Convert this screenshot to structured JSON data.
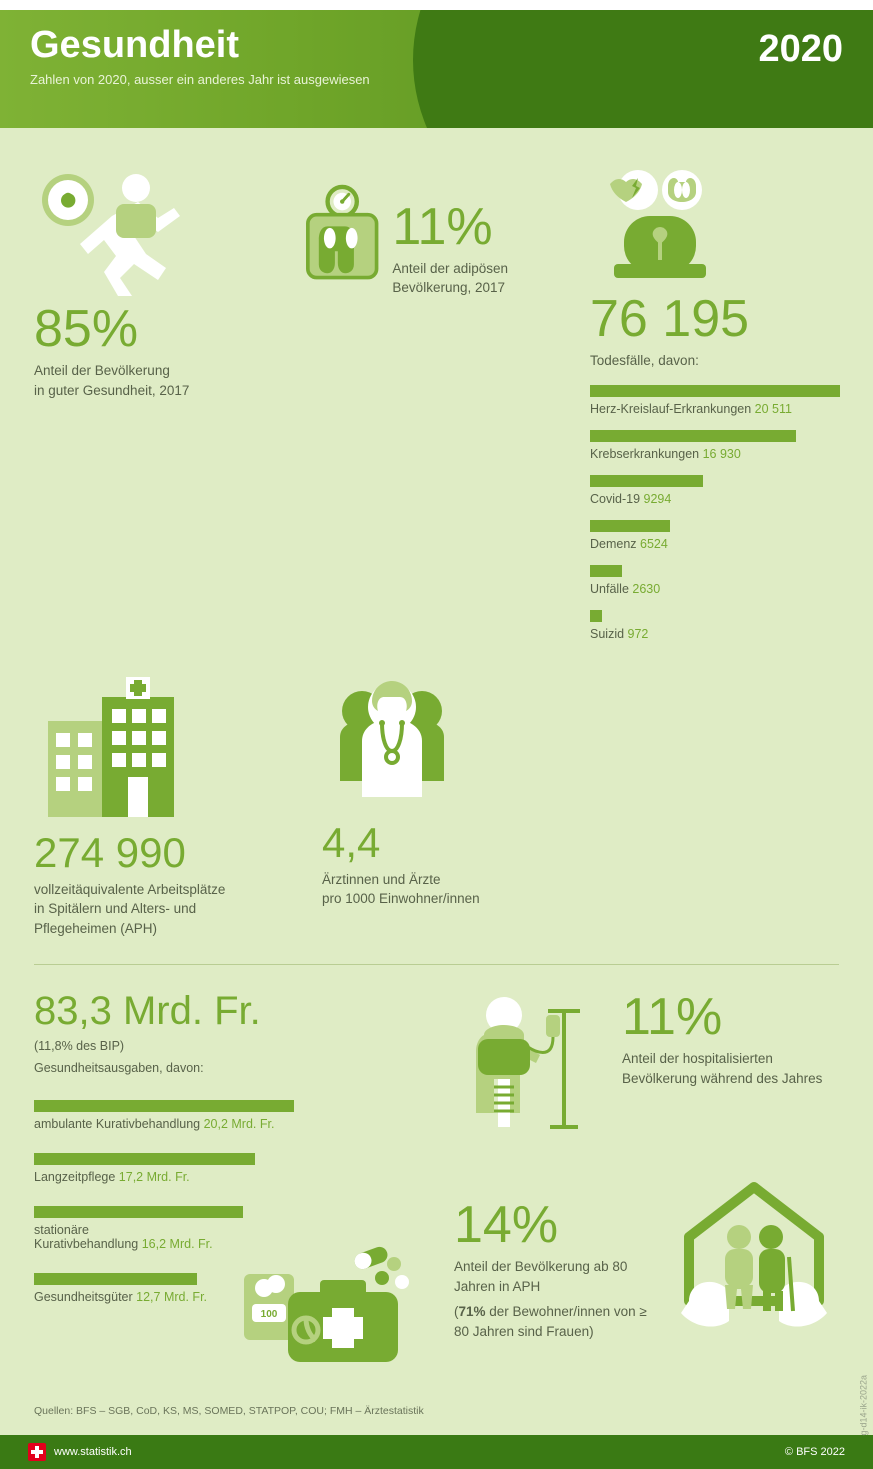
{
  "colors": {
    "pageBg": "#dfecc5",
    "accent": "#78ab32",
    "accentLight": "#b5d17f",
    "accentDark": "#3f7a14",
    "text": "#586249"
  },
  "header": {
    "title": "Gesundheit",
    "subtitle": "Zahlen von 2020, ausser ein anderes Jahr ist ausgewiesen",
    "year": "2020"
  },
  "stats": {
    "goodHealth": {
      "value": "85%",
      "label": "Anteil der Bevölkerung\nin guter Gesundheit, 2017"
    },
    "obese": {
      "value": "11%",
      "label": "Anteil der adipösen Bevölkerung, 2017"
    },
    "deaths": {
      "value": "76 195",
      "label": "Todesfälle, davon:",
      "max": 20511,
      "items": [
        {
          "label": "Herz-Kreislauf-Erkrankungen",
          "value": "20 511",
          "n": 20511
        },
        {
          "label": "Krebserkrankungen",
          "value": "16 930",
          "n": 16930
        },
        {
          "label": "Covid-19",
          "value": "9294",
          "n": 9294
        },
        {
          "label": "Demenz",
          "value": "6524",
          "n": 6524
        },
        {
          "label": "Unfälle",
          "value": "2630",
          "n": 2630
        },
        {
          "label": "Suizid",
          "value": "972",
          "n": 972
        }
      ]
    },
    "jobs": {
      "value": "274 990",
      "label": "vollzeitäquivalente Arbeitsplätze\nin Spitälern und Alters- und\nPflegeheimen (APH)"
    },
    "doctors": {
      "value": "4,4",
      "label": "Ärztinnen und Ärzte\npro 1000 Einwohner/innen"
    },
    "spending": {
      "value": "83,3 Mrd. Fr.",
      "sub1": "(11,8% des BIP)",
      "sub2": "Gesundheitsausgaben, davon:",
      "max": 20.2,
      "items": [
        {
          "label": "ambulante Kurativbehandlung",
          "value": "20,2 Mrd. Fr.",
          "n": 20.2
        },
        {
          "label": "Langzeitpflege",
          "value": "17,2 Mrd. Fr.",
          "n": 17.2
        },
        {
          "label": "stationäre\nKurativbehandlung",
          "value": "16,2 Mrd. Fr.",
          "n": 16.2
        },
        {
          "label": "Gesundheitsgüter",
          "value": "12,7 Mrd. Fr.",
          "n": 12.7
        }
      ]
    },
    "hospitalized": {
      "value": "11%",
      "label": "Anteil der hospitalisierten\nBevölkerung während des Jahres"
    },
    "over80": {
      "value": "14%",
      "label": "Anteil der Bevölkerung ab 80 Jahren in APH",
      "paren": "(71% der Bewohner/innen von ≥ 80 Jahren sind Frauen)",
      "bold": "71%"
    }
  },
  "source": "Quellen: BFS – SGB, CoD, KS, MS, SOMED, STATPOP, COU; FMH – Ärztestatistik",
  "sideId": "g-d14-ik-2022a",
  "footer": {
    "site": "www.statistik.ch",
    "copy": "© BFS 2022"
  }
}
